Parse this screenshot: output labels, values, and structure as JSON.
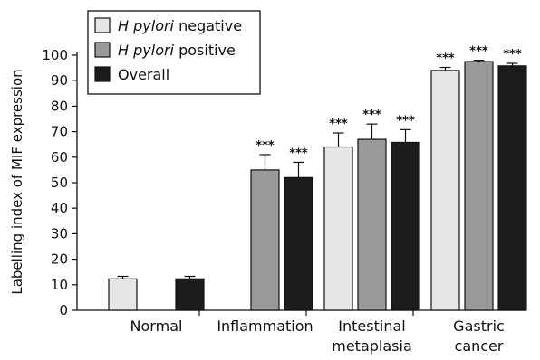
{
  "chart_data": {
    "type": "bar",
    "ylabel": "Labelling index of MIF expression",
    "ylim": [
      0,
      100
    ],
    "yticks": [
      0,
      10,
      20,
      30,
      40,
      50,
      60,
      70,
      80,
      90,
      100
    ],
    "grid": false,
    "legend_position": "top-left",
    "categories": [
      [
        "Normal"
      ],
      [
        "Inflammation"
      ],
      [
        "Intestinal",
        "metaplasia"
      ],
      [
        "Gastric",
        "cancer"
      ]
    ],
    "series": [
      {
        "name_parts": [
          "H pylori",
          " negative"
        ],
        "color": "#e6e6e6",
        "values": [
          12.3,
          null,
          64,
          94
        ],
        "errors": [
          1,
          null,
          5.5,
          1.2
        ],
        "significance": [
          "",
          "",
          "***",
          "***"
        ]
      },
      {
        "name_parts": [
          "H pylori",
          " positive"
        ],
        "color": "#999999",
        "values": [
          null,
          55,
          67,
          97.5
        ],
        "errors": [
          null,
          6,
          6,
          0.5
        ],
        "significance": [
          "",
          "***",
          "***",
          "***"
        ]
      },
      {
        "name_parts": [
          "",
          "Overall"
        ],
        "color": "#1c1c1c",
        "values": [
          12.3,
          52,
          65.8,
          95.8
        ],
        "errors": [
          1,
          6,
          5,
          1
        ],
        "significance": [
          "",
          "***",
          "***",
          "***"
        ]
      }
    ]
  }
}
